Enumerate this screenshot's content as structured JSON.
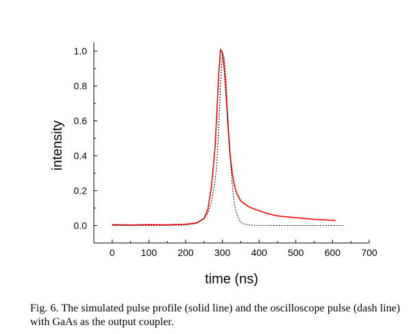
{
  "caption": "Fig. 6. The simulated pulse profile (solid line) and the oscilloscope pulse (dash line) with GaAs as the output coupler.",
  "chart_data": {
    "type": "line",
    "title": "",
    "xlabel": "time (ns)",
    "ylabel": "intensity",
    "xlim": [
      -50,
      700
    ],
    "ylim": [
      -0.1,
      1.05
    ],
    "xticks": [
      0,
      100,
      200,
      300,
      400,
      500,
      600,
      700
    ],
    "xtick_labels": [
      "0",
      "100",
      "200",
      "300",
      "400",
      "500",
      "600",
      "700"
    ],
    "yticks": [
      0.0,
      0.2,
      0.4,
      0.6,
      0.8,
      1.0
    ],
    "ytick_labels": [
      "0.0",
      "0.2",
      "0.4",
      "0.6",
      "0.8",
      "1.0"
    ],
    "grid": false,
    "legend": "none",
    "series": [
      {
        "style": "solid",
        "color": "#ff0000",
        "x": [
          0,
          50,
          100,
          150,
          200,
          230,
          250,
          260,
          270,
          280,
          285,
          290,
          295,
          300,
          305,
          310,
          315,
          320,
          325,
          330,
          335,
          340,
          345,
          350,
          360,
          370,
          380,
          400,
          420,
          450,
          500,
          550,
          608
        ],
        "y": [
          0.005,
          0.003,
          0.005,
          0.004,
          0.008,
          0.015,
          0.04,
          0.09,
          0.22,
          0.45,
          0.65,
          0.87,
          1.01,
          0.99,
          0.9,
          0.75,
          0.58,
          0.43,
          0.33,
          0.26,
          0.21,
          0.18,
          0.16,
          0.14,
          0.125,
          0.11,
          0.1,
          0.085,
          0.07,
          0.055,
          0.045,
          0.035,
          0.03
        ]
      },
      {
        "style": "dash",
        "color": "#000000",
        "x": [
          0,
          50,
          100,
          150,
          200,
          230,
          250,
          260,
          270,
          280,
          285,
          290,
          295,
          300,
          305,
          310,
          315,
          320,
          325,
          330,
          335,
          340,
          345,
          350,
          360,
          370,
          380,
          400,
          450,
          500,
          550,
          630
        ],
        "y": [
          0.0,
          0.0,
          0.0,
          0.0,
          0.003,
          0.012,
          0.04,
          0.07,
          0.13,
          0.25,
          0.36,
          0.55,
          0.8,
          0.99,
          0.96,
          0.82,
          0.62,
          0.43,
          0.28,
          0.17,
          0.1,
          0.06,
          0.035,
          0.02,
          0.008,
          0.004,
          0.002,
          0.001,
          0.0,
          0.0,
          0.0,
          0.0
        ]
      }
    ]
  }
}
